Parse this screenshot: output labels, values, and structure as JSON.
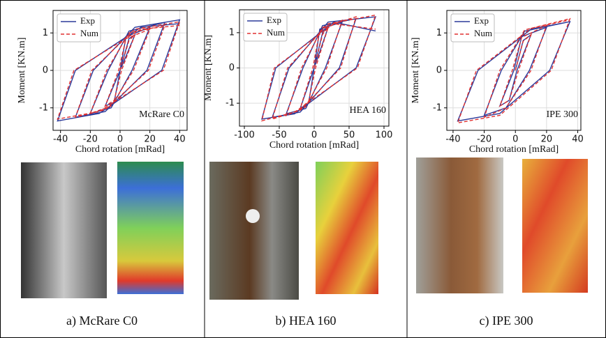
{
  "chart_data": [
    {
      "type": "line",
      "xlabel": "Chord rotation [mRad]",
      "ylabel": "Moment [KN.m]",
      "annotation": "McRare C0",
      "caption": "a) McRare C0",
      "xlim": [
        -45,
        45
      ],
      "ylim": [
        -1.6,
        1.6
      ],
      "xticks": [
        -40,
        -20,
        0,
        20,
        40
      ],
      "yticks": [
        -1,
        0,
        1
      ],
      "grid": true,
      "legend": "upper left",
      "series": [
        {
          "name": "Exp",
          "color": "#2b3a9a",
          "dash": false,
          "x": [
            0,
            6,
            10,
            0,
            -4,
            -10,
            0,
            4,
            20,
            8,
            -6,
            -20,
            -8,
            6,
            30,
            18,
            -10,
            -30,
            -18,
            10,
            40,
            28,
            -14,
            -42,
            -30,
            14,
            40
          ],
          "values": [
            0,
            0.85,
            0.95,
            0,
            -0.85,
            -0.95,
            0,
            0.9,
            1.15,
            0,
            -1.0,
            -1.15,
            0,
            1.05,
            1.28,
            0,
            -1.1,
            -1.25,
            0,
            1.15,
            1.35,
            0,
            -1.15,
            -1.35,
            0,
            1.15,
            1.25
          ]
        },
        {
          "name": "Num",
          "color": "#e03030",
          "dash": true,
          "x": [
            0,
            6,
            10,
            1,
            -4,
            -10,
            -1,
            4,
            20,
            9,
            -6,
            -20,
            -9,
            6,
            30,
            19,
            -10,
            -30,
            -19,
            10,
            40,
            29,
            -14,
            -42,
            -31,
            14,
            40
          ],
          "values": [
            0,
            0.8,
            0.95,
            0,
            -0.8,
            -0.95,
            0,
            0.85,
            1.1,
            0,
            -0.95,
            -1.15,
            0,
            1.0,
            1.2,
            0,
            -1.05,
            -1.25,
            0,
            1.1,
            1.3,
            0,
            -1.1,
            -1.3,
            0,
            1.1,
            1.2
          ]
        }
      ]
    },
    {
      "type": "line",
      "xlabel": "Chord rotation [mRad]",
      "ylabel": "Moment [KN.m]",
      "annotation": "HEA 160",
      "caption": "b) HEA 160",
      "xlim": [
        -107,
        107
      ],
      "ylim": [
        -1.65,
        1.65
      ],
      "xticks": [
        -100,
        -50,
        0,
        50,
        100
      ],
      "yticks": [
        -1,
        0,
        1
      ],
      "grid": true,
      "legend": "upper left",
      "series": [
        {
          "name": "Exp",
          "color": "#2b3a9a",
          "dash": false,
          "x": [
            0,
            12,
            20,
            0,
            -8,
            -20,
            0,
            8,
            40,
            16,
            -12,
            -40,
            -16,
            12,
            60,
            36,
            -20,
            -60,
            -36,
            20,
            88,
            60,
            -28,
            -75,
            -55,
            28,
            88
          ],
          "values": [
            0,
            1.0,
            1.15,
            0,
            -1.0,
            -1.15,
            0,
            1.1,
            1.3,
            0,
            -1.15,
            -1.3,
            0,
            1.2,
            1.4,
            0,
            -1.25,
            -1.4,
            0,
            1.3,
            1.45,
            0,
            -1.3,
            -1.45,
            0,
            1.3,
            1.05
          ]
        },
        {
          "name": "Num",
          "color": "#e03030",
          "dash": true,
          "x": [
            0,
            12,
            20,
            2,
            -8,
            -20,
            -2,
            8,
            40,
            18,
            -12,
            -40,
            -18,
            12,
            60,
            38,
            -20,
            -60,
            -38,
            20,
            88,
            62,
            -28,
            -75,
            -57,
            28,
            88
          ],
          "values": [
            0,
            0.95,
            1.15,
            0,
            -0.95,
            -1.15,
            0,
            1.05,
            1.35,
            0,
            -1.1,
            -1.35,
            0,
            1.15,
            1.45,
            0,
            -1.2,
            -1.45,
            0,
            1.25,
            1.5,
            0,
            -1.25,
            -1.5,
            0,
            1.25,
            1.1
          ]
        }
      ]
    },
    {
      "type": "line",
      "xlabel": "Chord rotation [mRad]",
      "ylabel": "Moment [KN.m]",
      "annotation": "IPE 300",
      "caption": "c) IPE 300",
      "xlim": [
        -44,
        42
      ],
      "ylim": [
        -1.6,
        1.6
      ],
      "xticks": [
        -40,
        -20,
        0,
        20,
        40
      ],
      "yticks": [
        -1,
        0,
        1
      ],
      "grid": true,
      "legend": "upper left",
      "series": [
        {
          "name": "Exp",
          "color": "#2b3a9a",
          "dash": false,
          "x": [
            0,
            5,
            10,
            1,
            -4,
            -10,
            -1,
            4,
            20,
            9,
            -6,
            -20,
            -9,
            6,
            35,
            22,
            -10,
            -37,
            -24,
            10,
            35
          ],
          "values": [
            0,
            0.8,
            0.95,
            0,
            -0.8,
            -0.95,
            0,
            0.9,
            1.15,
            0,
            -1.0,
            -1.2,
            0,
            1.05,
            1.3,
            0,
            -1.15,
            -1.35,
            0,
            1.1,
            1.3
          ]
        },
        {
          "name": "Num",
          "color": "#e03030",
          "dash": true,
          "x": [
            0,
            5,
            10,
            2,
            -4,
            -10,
            -2,
            4,
            20,
            10,
            -6,
            -20,
            -10,
            6,
            35,
            23,
            -10,
            -37,
            -25,
            10,
            35
          ],
          "values": [
            0,
            0.78,
            0.95,
            0,
            -0.8,
            -0.95,
            0,
            0.88,
            1.2,
            0,
            -1.0,
            -1.25,
            0,
            1.08,
            1.38,
            0,
            -1.2,
            -1.4,
            0,
            1.12,
            1.35
          ]
        }
      ]
    }
  ]
}
